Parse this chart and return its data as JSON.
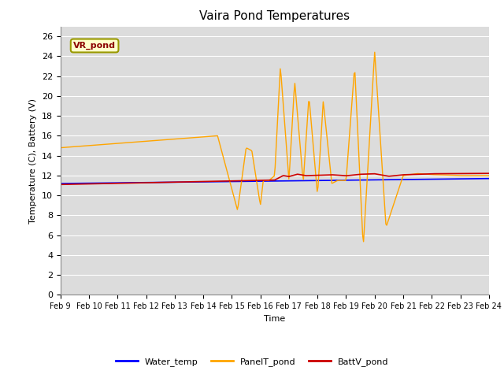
{
  "title": "Vaira Pond Temperatures",
  "ylabel": "Temperature (C), Battery (V)",
  "xlabel": "Time",
  "ylim": [
    0,
    27
  ],
  "yticks": [
    0,
    2,
    4,
    6,
    8,
    10,
    12,
    14,
    16,
    18,
    20,
    22,
    24,
    26
  ],
  "annotation_text": "VR_pond",
  "annotation_color": "#8B0000",
  "annotation_bg": "#FFFFCC",
  "bg_color": "#DCDCDC",
  "water_temp_color": "#0000FF",
  "panel_temp_color": "#FFA500",
  "batt_color": "#CC0000",
  "legend_labels": [
    "Water_temp",
    "PanelT_pond",
    "BattV_pond"
  ],
  "x_tick_labels": [
    "Feb 9",
    "Feb 10",
    "Feb 11",
    "Feb 12",
    "Feb 13",
    "Feb 14",
    "Feb 15",
    "Feb 16",
    "Feb 17",
    "Feb 18",
    "Feb 19",
    "Feb 20",
    "Feb 21",
    "Feb 22",
    "Feb 23",
    "Feb 24"
  ],
  "figsize": [
    6.4,
    4.8
  ],
  "dpi": 100
}
